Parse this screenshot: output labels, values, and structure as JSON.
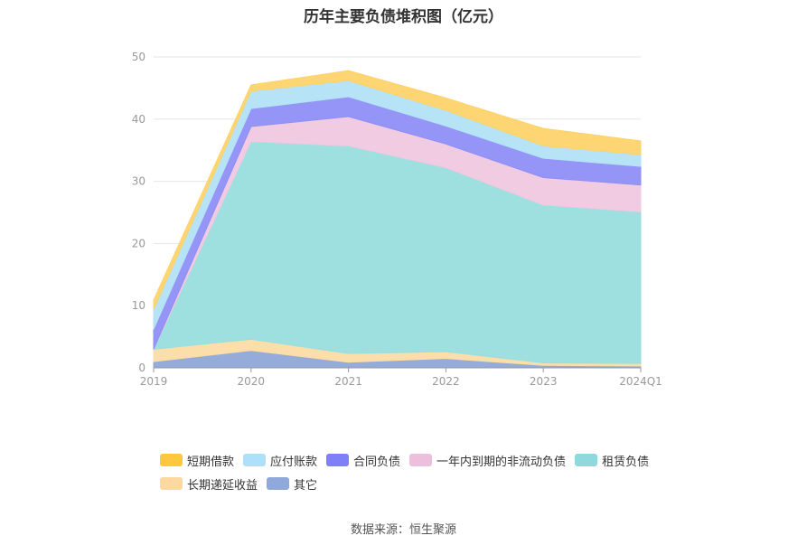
{
  "chart_data": {
    "type": "area",
    "stacked": true,
    "title": "历年主要负债堆积图（亿元）",
    "categories": [
      "2019",
      "2020",
      "2021",
      "2022",
      "2023",
      "2024Q1"
    ],
    "ylim": [
      0,
      50
    ],
    "yticks": [
      0,
      10,
      20,
      30,
      40,
      50
    ],
    "grid": true,
    "legend_position": "bottom",
    "series": [
      {
        "name": "其它",
        "color": "#8fa8d8",
        "values": [
          1.0,
          2.8,
          0.9,
          1.5,
          0.4,
          0.3
        ]
      },
      {
        "name": "长期递延收益",
        "color": "#fcdca6",
        "values": [
          2.0,
          1.8,
          1.4,
          1.1,
          0.4,
          0.4
        ]
      },
      {
        "name": "租赁负债",
        "color": "#99dede",
        "values": [
          0.0,
          31.8,
          33.4,
          29.6,
          25.4,
          24.4
        ]
      },
      {
        "name": "一年内到期的非流动负债",
        "color": "#f0c8df",
        "values": [
          0.0,
          2.4,
          4.7,
          3.8,
          4.4,
          4.3
        ]
      },
      {
        "name": "合同负债",
        "color": "#8e8ff5",
        "values": [
          3.2,
          2.9,
          3.2,
          2.9,
          3.1,
          3.0
        ]
      },
      {
        "name": "应付账款",
        "color": "#b3e2f7",
        "values": [
          3.2,
          2.8,
          2.6,
          2.5,
          2.0,
          1.9
        ]
      },
      {
        "name": "短期借款",
        "color": "#fdd36a",
        "values": [
          1.5,
          1.0,
          1.6,
          2.0,
          2.8,
          2.2
        ]
      }
    ]
  },
  "legend": {
    "rows": [
      [
        {
          "label": "短期借款",
          "color": "#fdc73e"
        },
        {
          "label": "应付账款",
          "color": "#aee0fa"
        },
        {
          "label": "合同负债",
          "color": "#7f80f7"
        },
        {
          "label": "一年内到期的非流动负债",
          "color": "#ecbfdc"
        },
        {
          "label": "租赁负债",
          "color": "#8fd9dc"
        }
      ],
      [
        {
          "label": "长期递延收益",
          "color": "#fcd9a1"
        },
        {
          "label": "其它",
          "color": "#8fa9db"
        }
      ]
    ]
  },
  "source": "数据来源：恒生聚源"
}
